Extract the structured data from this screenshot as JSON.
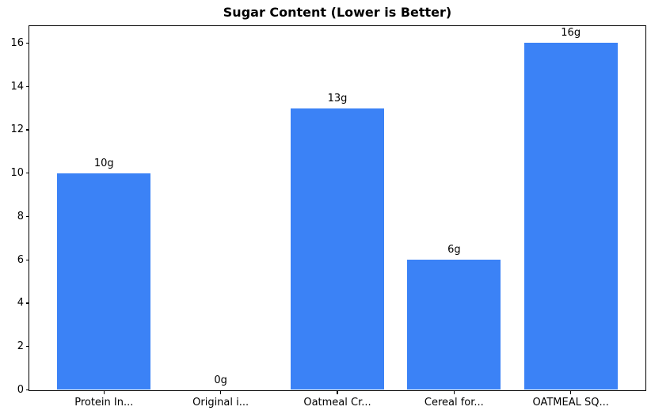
{
  "figure": {
    "background": "#ffffff"
  },
  "chart_data": {
    "type": "bar",
    "title": "Sugar Content (Lower is Better)",
    "categories": [
      "Protein In...",
      "Original i...",
      "Oatmeal Cr...",
      "Cereal for...",
      "OATMEAL SQ..."
    ],
    "values": [
      10,
      0,
      13,
      6,
      16
    ],
    "bar_labels": [
      "10g",
      "0g",
      "13g",
      "6g",
      "16g"
    ],
    "unit": "g",
    "xlabel": "",
    "ylabel": "",
    "y_ticks": [
      0,
      2,
      4,
      6,
      8,
      10,
      12,
      14,
      16
    ],
    "ylim": [
      0,
      16.8
    ],
    "grid": false,
    "legend": "none",
    "bar_color": "#3b82f6",
    "axis_color": "#000000",
    "text_color": "#000000"
  }
}
